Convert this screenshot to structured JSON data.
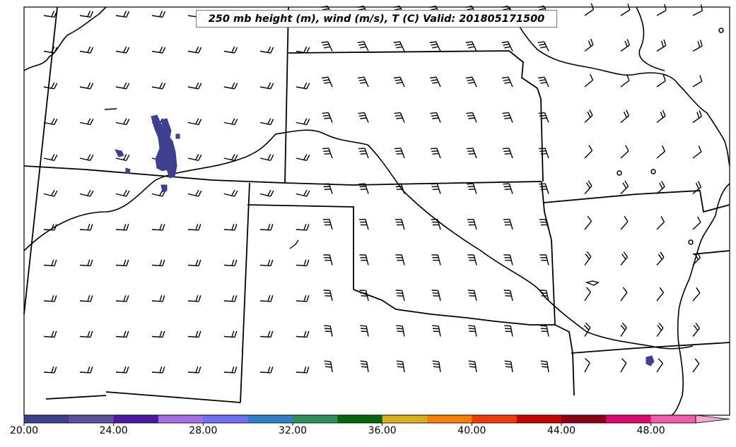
{
  "map": {
    "title": "250 mb height (m), wind (m/s), T (C) Valid: 201805171500",
    "colorbar": {
      "labels": [
        "20.00",
        "24.00",
        "28.00",
        "32.00",
        "36.00",
        "40.00",
        "44.00",
        "48.00"
      ],
      "colors": [
        "#3d3f8f",
        "#5b4f9e",
        "#4b17a5",
        "#a66ee6",
        "#6f6ff7",
        "#2f7fc8",
        "#2e8d5f",
        "#06660e",
        "#d8b11a",
        "#ff8000",
        "#ef3a0a",
        "#c90000",
        "#8b0012",
        "#df0873",
        "#f35ab0",
        "#f7a6cf"
      ],
      "extend": "max"
    },
    "shading_color": "#3d3f8f",
    "contour_color": "#000000"
  }
}
